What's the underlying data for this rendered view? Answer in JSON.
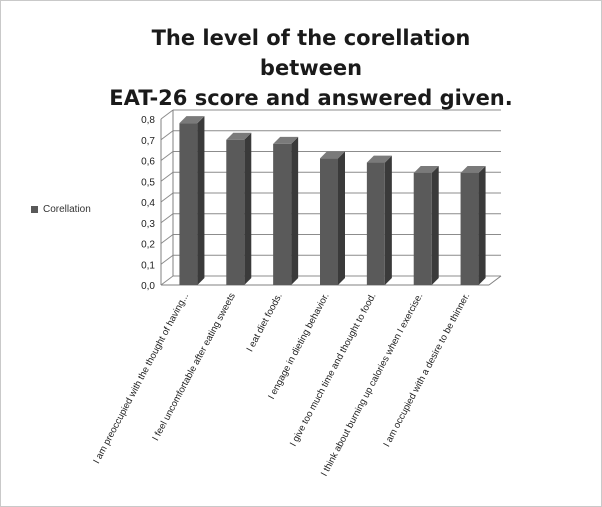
{
  "chart_data": {
    "type": "bar",
    "title_lines": [
      "The level of the corellation between",
      "EAT-26 score and answered given."
    ],
    "categories": [
      "I am preoccupied with the thought of having...",
      "I feel uncomfortable after eating sweets",
      "I eat diet foods.",
      "I engage in dieting behavior.",
      "I give too much time and thought to food.",
      "I think about burning up calories when I exercise.",
      "I am occupied with a desire to be thinner."
    ],
    "series": [
      {
        "name": "Corellation",
        "values": [
          0.78,
          0.7,
          0.68,
          0.61,
          0.59,
          0.54,
          0.54
        ]
      }
    ],
    "y_ticks": [
      "0,0",
      "0,1",
      "0,2",
      "0,3",
      "0,4",
      "0,5",
      "0,6",
      "0,7",
      "0,8"
    ],
    "ylim": [
      0,
      0.8
    ],
    "grid": true,
    "legend_position": "left",
    "bar_color": "#5a5a5a",
    "gridline_color": "#8c8c8c"
  }
}
